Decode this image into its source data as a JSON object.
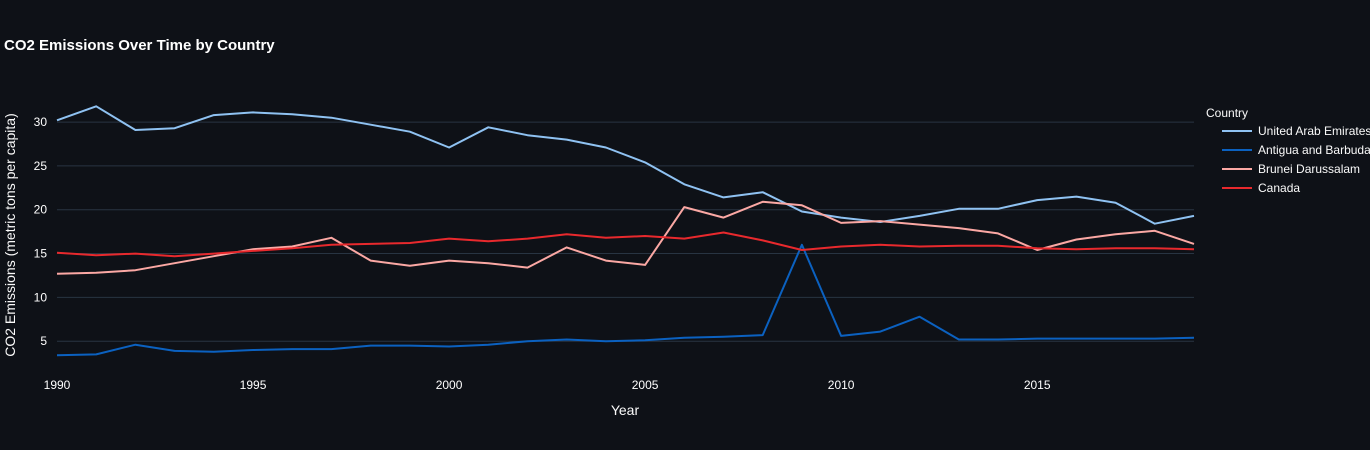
{
  "chart_data": {
    "type": "line",
    "title": "CO2 Emissions Over Time by Country",
    "xlabel": "Year",
    "ylabel": "CO2 Emissions (metric tons per capita)",
    "legend_title": "Country",
    "legend_position": "top-right",
    "grid": true,
    "xlim": [
      1990,
      2019
    ],
    "ylim": [
      2.4,
      34.0
    ],
    "x_ticks": [
      1990,
      1995,
      2000,
      2005,
      2010,
      2015
    ],
    "y_ticks": [
      5,
      10,
      15,
      20,
      25,
      30
    ],
    "x": [
      1990,
      1991,
      1992,
      1993,
      1994,
      1995,
      1996,
      1997,
      1998,
      1999,
      2000,
      2001,
      2002,
      2003,
      2004,
      2005,
      2006,
      2007,
      2008,
      2009,
      2010,
      2011,
      2012,
      2013,
      2014,
      2015,
      2016,
      2017,
      2018,
      2019
    ],
    "series": [
      {
        "name": "United Arab Emirates",
        "color": "#8fc2f2",
        "values": [
          30.2,
          31.8,
          29.1,
          29.3,
          30.8,
          31.1,
          30.9,
          30.5,
          29.7,
          28.9,
          27.1,
          29.4,
          28.5,
          28.0,
          27.1,
          25.4,
          22.9,
          21.4,
          22.0,
          19.8,
          19.1,
          18.6,
          19.3,
          20.1,
          20.1,
          21.1,
          21.5,
          20.8,
          18.4,
          19.3
        ]
      },
      {
        "name": "Antigua and Barbuda",
        "color": "#0b61c0",
        "values": [
          3.4,
          3.5,
          4.6,
          3.9,
          3.8,
          4.0,
          4.1,
          4.1,
          4.5,
          4.5,
          4.4,
          4.6,
          5.0,
          5.2,
          5.0,
          5.1,
          5.4,
          5.5,
          5.7,
          16.0,
          5.6,
          6.1,
          7.8,
          5.2,
          5.2,
          5.3,
          5.3,
          5.3,
          5.3,
          5.4
        ]
      },
      {
        "name": "Brunei Darussalam",
        "color": "#fba8a4",
        "values": [
          12.7,
          12.8,
          13.1,
          13.9,
          14.7,
          15.5,
          15.8,
          16.8,
          14.2,
          13.6,
          14.2,
          13.9,
          13.4,
          15.7,
          14.2,
          13.7,
          20.3,
          19.1,
          20.9,
          20.5,
          18.5,
          18.7,
          18.3,
          17.9,
          17.3,
          15.4,
          16.6,
          17.2,
          17.6,
          16.1
        ]
      },
      {
        "name": "Canada",
        "color": "#e8292d",
        "values": [
          15.1,
          14.8,
          15.0,
          14.7,
          15.0,
          15.3,
          15.6,
          16.0,
          16.1,
          16.2,
          16.7,
          16.4,
          16.7,
          17.2,
          16.8,
          17.0,
          16.7,
          17.4,
          16.5,
          15.4,
          15.8,
          16.0,
          15.8,
          15.9,
          15.9,
          15.6,
          15.5,
          15.6,
          15.6,
          15.5
        ]
      }
    ]
  }
}
